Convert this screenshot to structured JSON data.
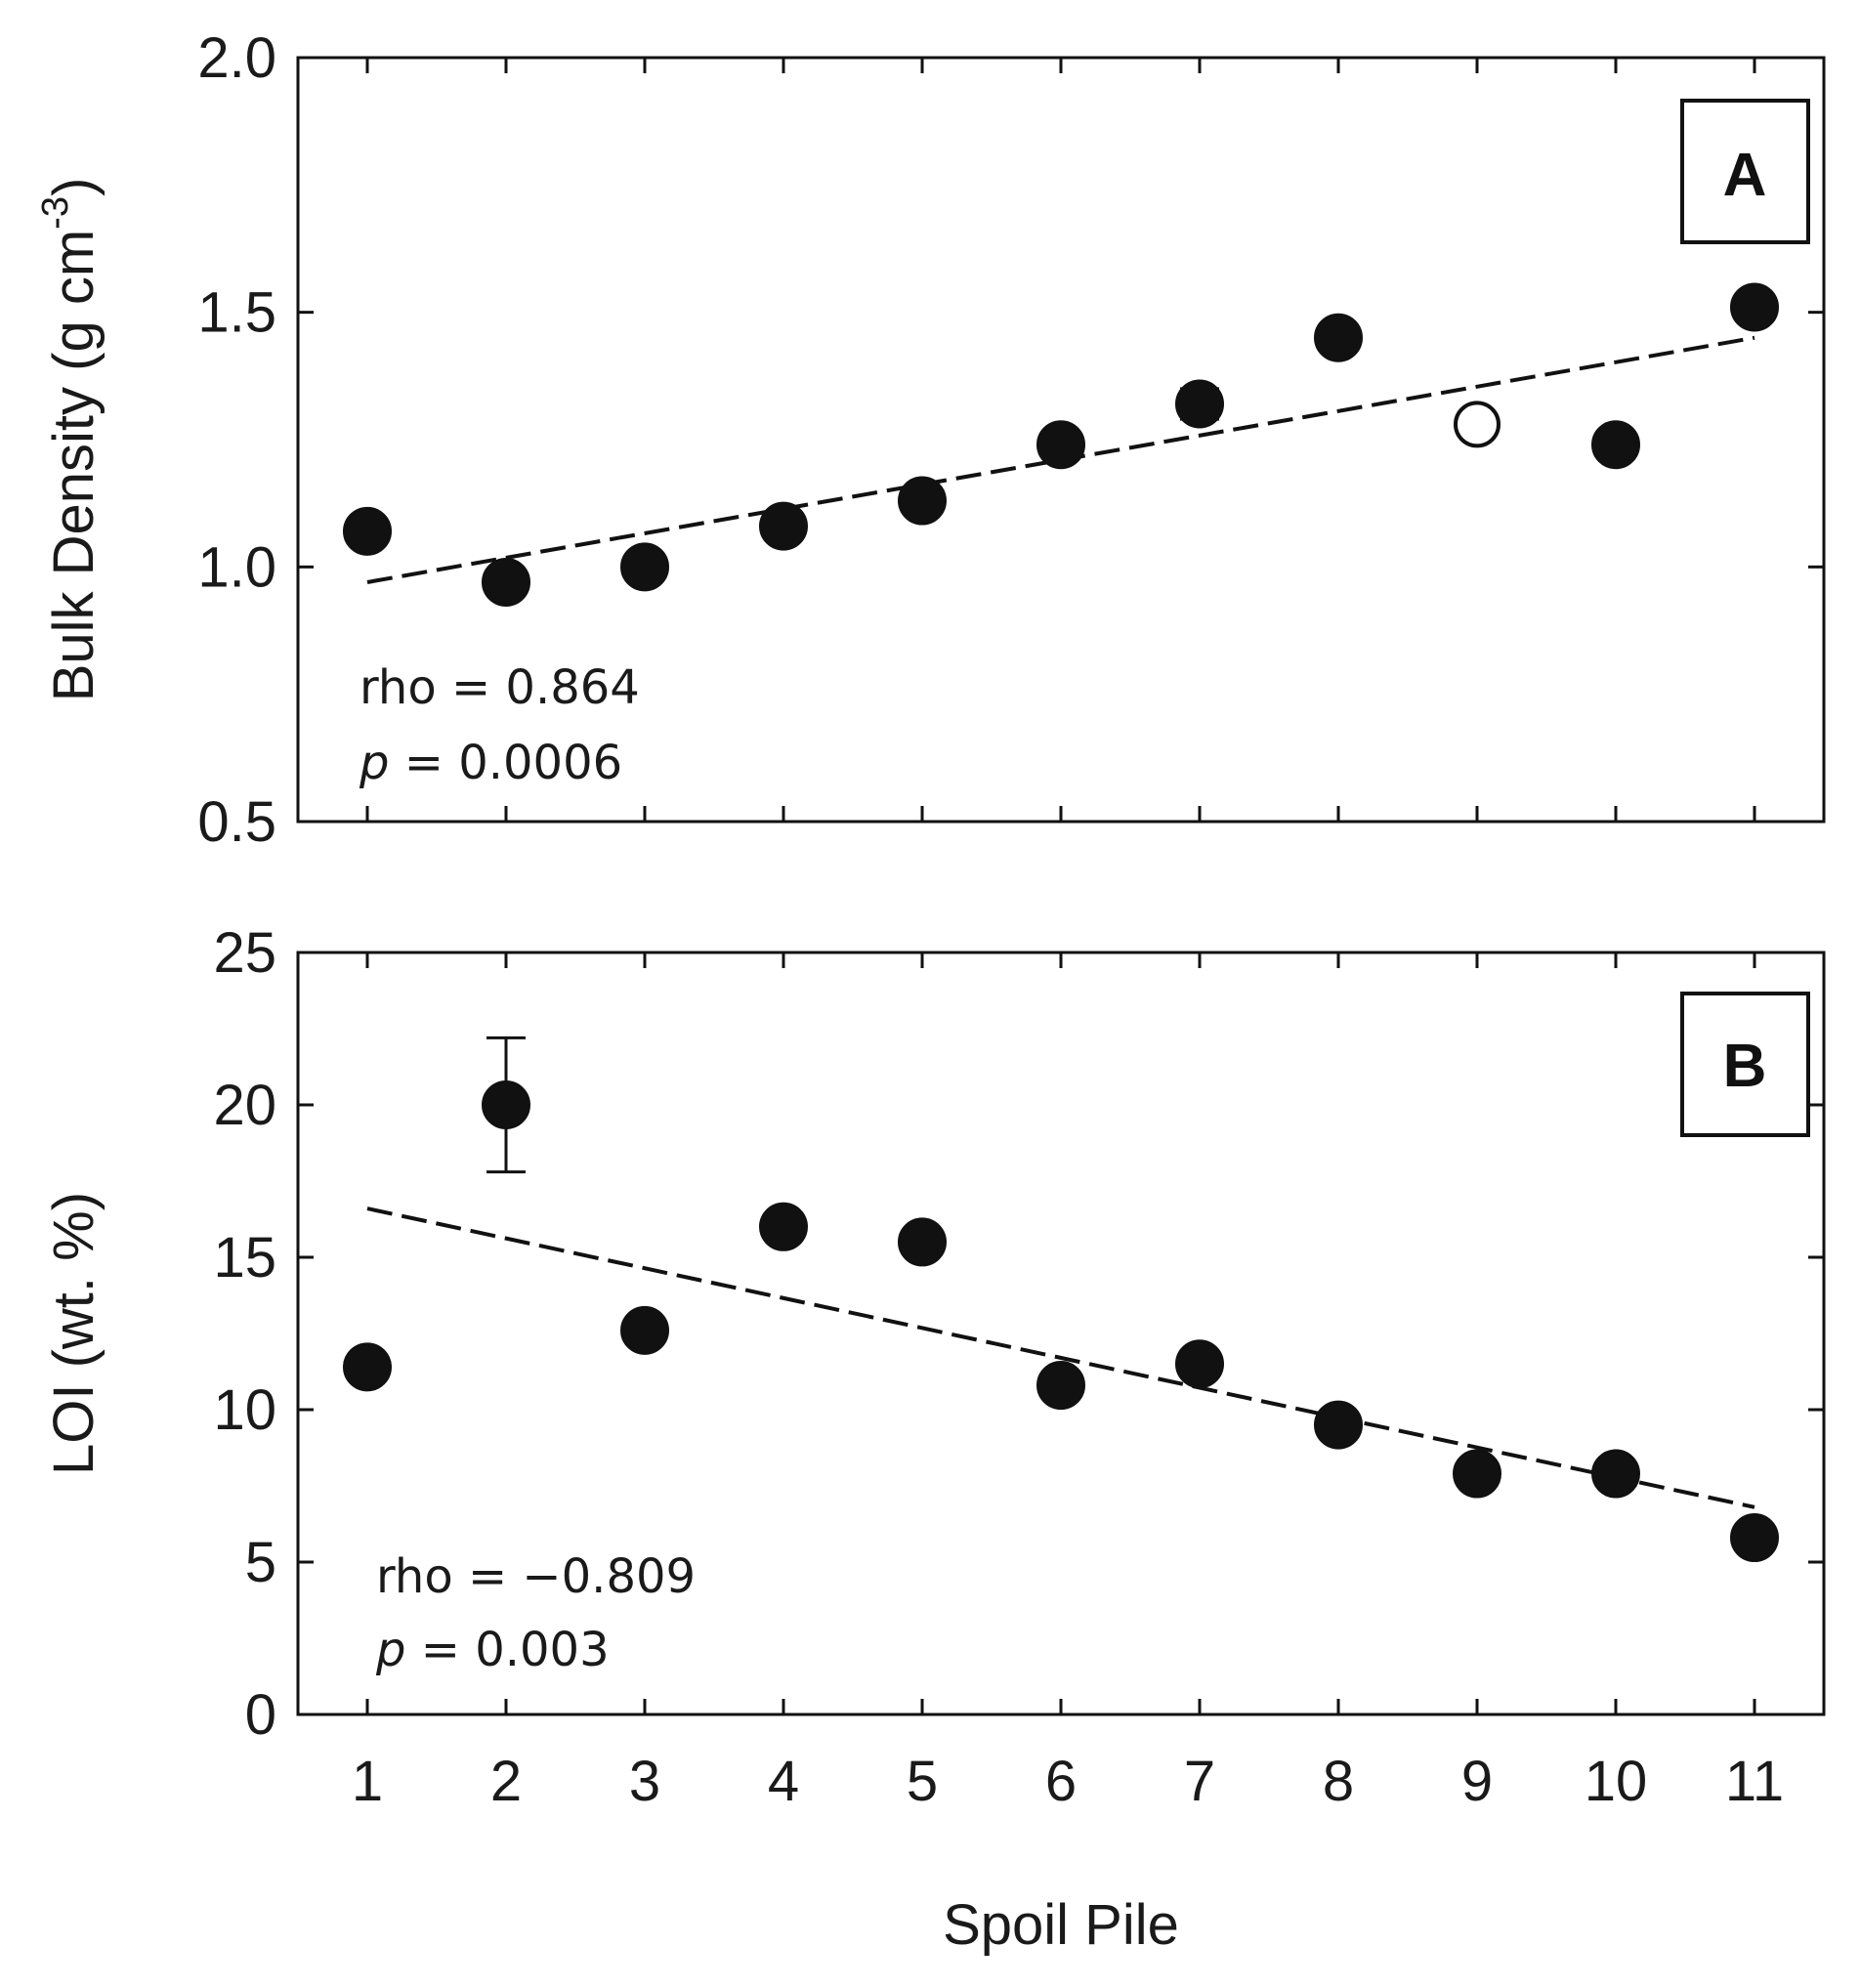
{
  "colors": {
    "ink": "#111111",
    "background": "#ffffff"
  },
  "chart_data": [
    {
      "type": "scatter",
      "panel": "A",
      "ylabel": "Bulk Density (g cm",
      "ylabel_sup": "-3",
      "ylabel_close": ")",
      "xlabel": "",
      "xlim": [
        0.5,
        11.5
      ],
      "ylim": [
        0.5,
        2.0
      ],
      "yticks": [
        "0.5",
        "1.0",
        "1.5",
        "2.0"
      ],
      "xticks": [
        "1",
        "2",
        "3",
        "4",
        "5",
        "6",
        "7",
        "8",
        "9",
        "10",
        "11"
      ],
      "x": [
        1,
        2,
        3,
        4,
        5,
        6,
        7,
        8,
        9,
        10,
        11
      ],
      "y": [
        1.07,
        0.97,
        1.0,
        1.08,
        1.13,
        1.24,
        1.32,
        1.45,
        1.28,
        1.24,
        1.51
      ],
      "filled": [
        true,
        true,
        true,
        true,
        true,
        true,
        true,
        true,
        false,
        true,
        true
      ],
      "error": [
        0,
        0,
        0,
        0,
        0,
        0,
        0.03,
        0,
        0,
        0,
        0
      ],
      "trend": {
        "x": [
          1,
          11
        ],
        "y": [
          0.97,
          1.45
        ],
        "style": "dashed"
      },
      "stats": {
        "rho_label": "rho",
        "rho_value": "0.864",
        "p_label": "p",
        "p_value": "0.0006"
      },
      "grid": false
    },
    {
      "type": "scatter",
      "panel": "B",
      "ylabel": "LOI (wt. %)",
      "xlabel": "Spoil Pile",
      "xlim": [
        0.5,
        11.5
      ],
      "ylim": [
        0,
        25
      ],
      "yticks": [
        "0",
        "5",
        "10",
        "15",
        "20",
        "25"
      ],
      "xticks": [
        "1",
        "2",
        "3",
        "4",
        "5",
        "6",
        "7",
        "8",
        "9",
        "10",
        "11"
      ],
      "x": [
        1,
        2,
        3,
        4,
        5,
        6,
        7,
        8,
        9,
        10,
        11
      ],
      "y": [
        11.4,
        20.0,
        12.6,
        16.0,
        15.5,
        10.8,
        11.5,
        9.5,
        7.9,
        7.9,
        5.8
      ],
      "filled": [
        true,
        true,
        true,
        true,
        true,
        true,
        true,
        true,
        true,
        true,
        true
      ],
      "error": [
        0,
        2.2,
        0,
        0,
        0,
        0,
        0,
        0,
        0,
        0,
        0
      ],
      "trend": {
        "x": [
          1,
          11
        ],
        "y": [
          16.6,
          6.8
        ],
        "style": "dashed"
      },
      "stats": {
        "rho_label": "rho",
        "rho_value": "−0.809",
        "p_label": "p",
        "p_value": "0.003"
      },
      "grid": false
    }
  ]
}
